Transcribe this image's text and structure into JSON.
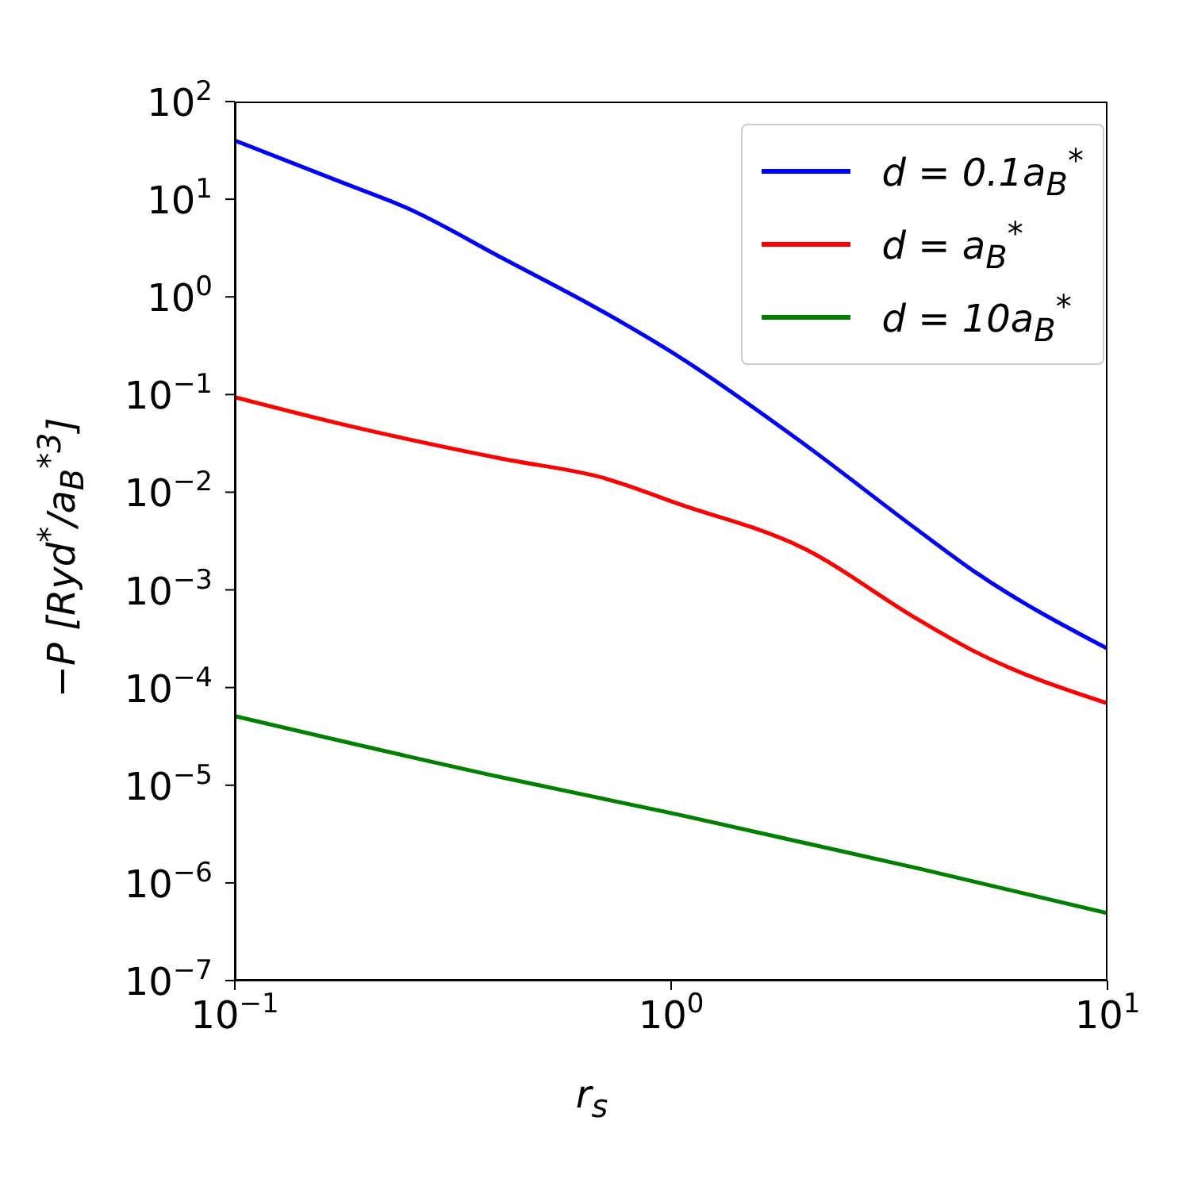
{
  "chart_data": {
    "type": "line",
    "xlabel": "r$_{s}$",
    "ylabel": "−P [Ryd$^{*}$/a$_{B}$$^{*3}$]",
    "log": "xy",
    "legend": "top right",
    "line_style": "solid",
    "marker": "none",
    "xlim": [
      0.1,
      10
    ],
    "ylim": [
      1e-07,
      100
    ],
    "xticks": [
      {
        "value": 0.1,
        "label": "10$^{−1}$"
      },
      {
        "value": 1,
        "label": "10$^{0}$"
      },
      {
        "value": 10,
        "label": "10$^{1}$"
      }
    ],
    "yticks": [
      {
        "value": 1e-07,
        "label": "10$^{−7}$"
      },
      {
        "value": 1e-06,
        "label": "10$^{−6}$"
      },
      {
        "value": 1e-05,
        "label": "10$^{−5}$"
      },
      {
        "value": 0.0001,
        "label": "10$^{−4}$"
      },
      {
        "value": 0.001,
        "label": "10$^{−3}$"
      },
      {
        "value": 0.01,
        "label": "10$^{−2}$"
      },
      {
        "value": 0.1,
        "label": "10$^{−1}$"
      },
      {
        "value": 1,
        "label": "10$^{0}$"
      },
      {
        "value": 10,
        "label": "10$^{1}$"
      },
      {
        "value": 100,
        "label": "10$^{2}$"
      }
    ],
    "series": [
      {
        "name": "d = 0.1a$_{B}$$^{*}$",
        "color": "#0000ff",
        "x": [
          0.1,
          0.175,
          0.25,
          0.41,
          0.7,
          1.04,
          2,
          3.7,
          5,
          10
        ],
        "values": [
          40,
          15,
          8,
          2.5,
          0.7,
          0.245,
          0.032,
          0.004,
          0.0015,
          0.00025
        ]
      },
      {
        "name": "d = a$_{B}$$^{*}$",
        "color": "#ff0000",
        "x": [
          0.1,
          0.175,
          0.41,
          0.7,
          1.04,
          2,
          3.7,
          5,
          10
        ],
        "values": [
          0.094,
          0.05,
          0.022,
          0.014,
          0.0076,
          0.0027,
          0.00049,
          0.00023,
          6.9e-05
        ]
      },
      {
        "name": "d = 10a$_{B}$$^{*}$",
        "color": "#008000",
        "x": [
          0.1,
          0.41,
          1.04,
          3.7,
          10
        ],
        "values": [
          5.1e-05,
          1.2e-05,
          5e-06,
          1.4e-06,
          4.9e-07
        ]
      }
    ]
  }
}
